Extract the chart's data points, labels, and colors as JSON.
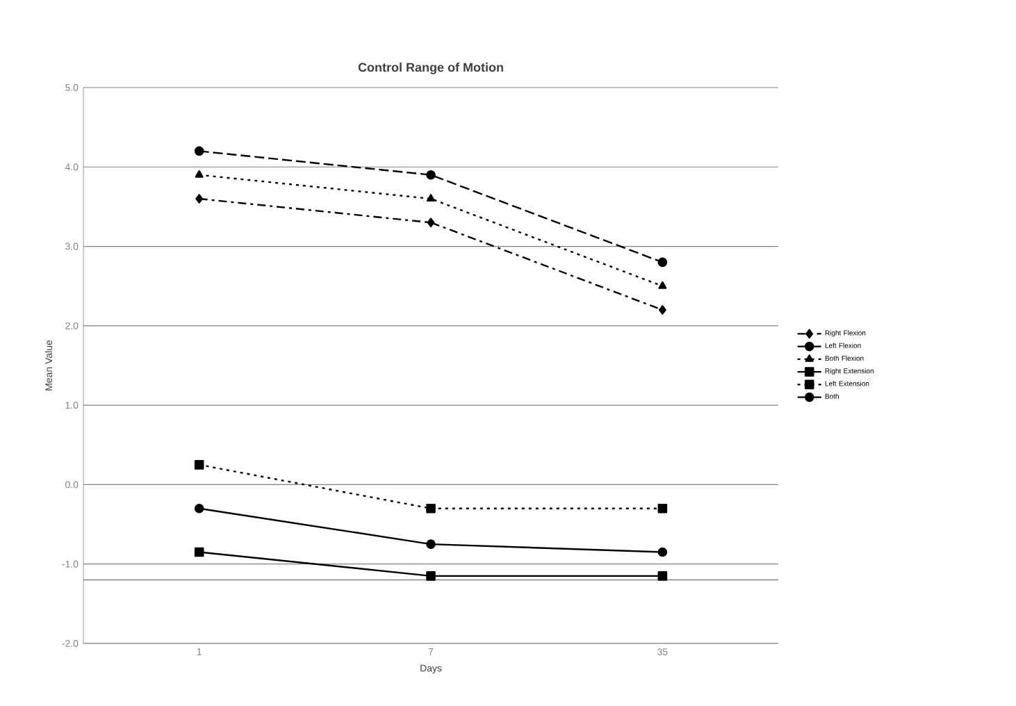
{
  "chart_data": {
    "type": "line",
    "title": "Control Range of Motion",
    "xlabel": "Days",
    "ylabel": "Mean Value",
    "categories": [
      "1",
      "7",
      "35"
    ],
    "series": [
      {
        "name": "Right Flexion",
        "color": "#000000",
        "marker": "diamond",
        "line_style": "dashdot",
        "values": [
          3.6,
          3.3,
          2.2
        ]
      },
      {
        "name": "Left Flexion",
        "color": "#000000",
        "marker": "circle",
        "line_style": "dashed",
        "values": [
          4.2,
          3.9,
          2.8
        ]
      },
      {
        "name": "Both Flexion",
        "color": "#000000",
        "marker": "triangle",
        "line_style": "dotted",
        "values": [
          3.9,
          3.6,
          2.5
        ]
      },
      {
        "name": "Right Extension",
        "color": "#000000",
        "marker": "square",
        "line_style": "solid",
        "values": [
          -0.85,
          -1.15,
          -1.15
        ]
      },
      {
        "name": "Left Extension",
        "color": "#000000",
        "marker": "square",
        "line_style": "dotted",
        "values": [
          0.25,
          -0.3,
          -0.3
        ]
      },
      {
        "name": "Both",
        "color": "#000000",
        "marker": "circle",
        "line_style": "solid",
        "values": [
          -0.3,
          -0.75,
          -0.85
        ]
      }
    ],
    "ylim": [
      -2,
      5
    ],
    "yticks": [
      {
        "value": -2,
        "label": "-2.0"
      },
      {
        "value": -1,
        "label": "-1.0"
      },
      {
        "value": 0,
        "label": "0.0"
      },
      {
        "value": 1,
        "label": "1.0"
      },
      {
        "value": 2,
        "label": "2.0"
      },
      {
        "value": 3,
        "label": "3.0"
      },
      {
        "value": 4,
        "label": "4.0"
      },
      {
        "value": 5,
        "label": "5.0"
      }
    ],
    "ref_lines": [
      {
        "axis": "y",
        "value": -1.2,
        "color": "#808080"
      }
    ],
    "grid": "y",
    "legend": "right"
  }
}
